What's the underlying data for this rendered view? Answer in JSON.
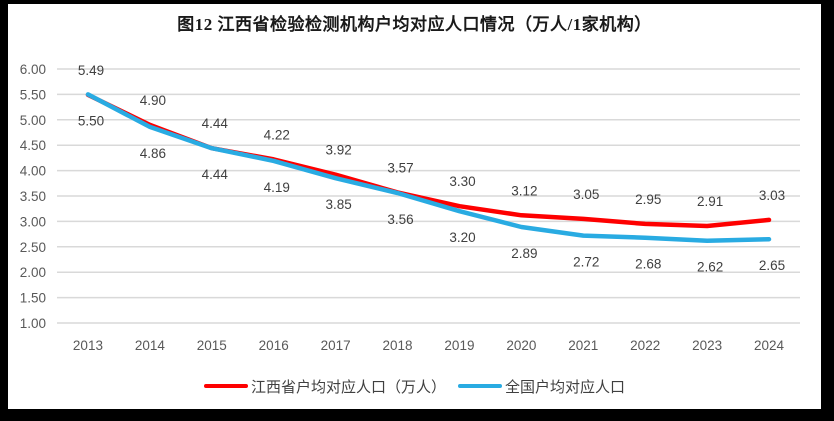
{
  "title": "图12  江西省检验检测机构户均对应人口情况（万人/1家机构）",
  "colors": {
    "frame_border": "#000000",
    "background": "#ffffff",
    "gridline": "#d9d9d9",
    "axis_label": "#595959",
    "data_label": "#404040",
    "title_text": "#1a1a1a",
    "series_jiangxi": "#fe0000",
    "series_national": "#29abe2"
  },
  "chart_data": {
    "type": "line",
    "title": "图12  江西省检验检测机构户均对应人口情况（万人/1家机构）",
    "categories": [
      "2013",
      "2014",
      "2015",
      "2016",
      "2017",
      "2018",
      "2019",
      "2020",
      "2021",
      "2022",
      "2023",
      "2024"
    ],
    "series": [
      {
        "name": "江西省户均对应人口（万人）",
        "color": "#fe0000",
        "label_position": "above",
        "values": [
          5.49,
          4.9,
          4.44,
          4.22,
          3.92,
          3.57,
          3.3,
          3.12,
          3.05,
          2.95,
          2.91,
          3.03
        ]
      },
      {
        "name": "全国户均对应人口",
        "color": "#29abe2",
        "label_position": "below",
        "values": [
          5.5,
          4.86,
          4.44,
          4.19,
          3.85,
          3.56,
          3.2,
          2.89,
          2.72,
          2.68,
          2.62,
          2.65
        ]
      }
    ],
    "xlabel": "",
    "ylabel": "",
    "ylim": [
      1.0,
      6.0
    ],
    "ytick_step": 0.5,
    "ytick_labels": [
      "6.00",
      "5.50",
      "5.00",
      "4.50",
      "4.00",
      "3.50",
      "3.00",
      "2.50",
      "2.00",
      "1.50",
      "1.00"
    ],
    "grid": true,
    "legend_position": "bottom",
    "value_label_format": "0.00"
  }
}
